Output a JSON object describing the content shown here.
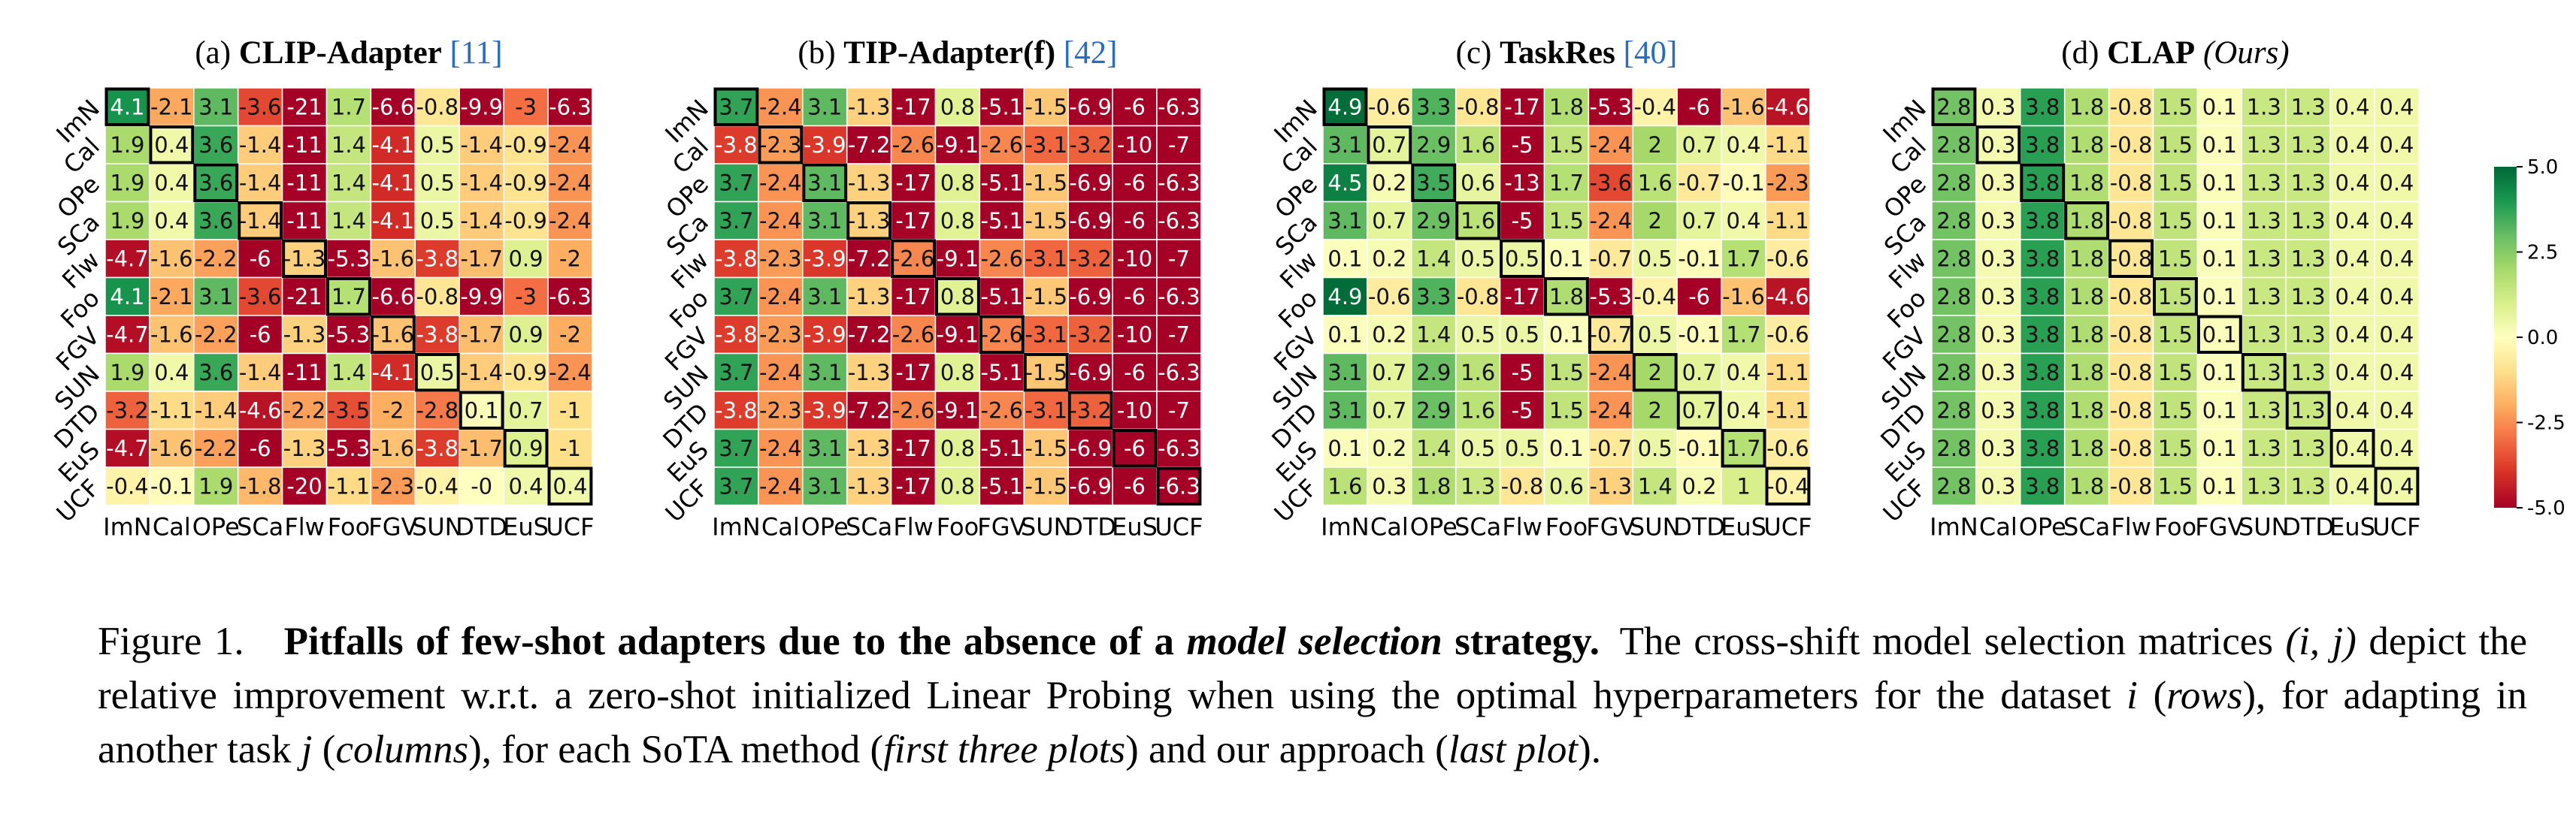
{
  "chart_data": [
    {
      "type": "heatmap",
      "title_label": "(a)",
      "title_method": "CLIP-Adapter",
      "title_ref": "[11]",
      "categories": [
        "ImN",
        "Cal",
        "OPe",
        "SCa",
        "Flw",
        "Foo",
        "FGV",
        "SUN",
        "DTD",
        "EuS",
        "UCF"
      ],
      "values": [
        [
          4.1,
          -2.1,
          3.1,
          -3.6,
          -21,
          1.7,
          -6.6,
          -0.8,
          -9.9,
          -3,
          -6.3
        ],
        [
          1.9,
          0.4,
          3.6,
          -1.4,
          -11,
          1.4,
          -4.1,
          0.5,
          -1.4,
          -0.9,
          -2.4
        ],
        [
          1.9,
          0.4,
          3.6,
          -1.4,
          -11,
          1.4,
          -4.1,
          0.5,
          -1.4,
          -0.9,
          -2.4
        ],
        [
          1.9,
          0.4,
          3.6,
          -1.4,
          -11,
          1.4,
          -4.1,
          0.5,
          -1.4,
          -0.9,
          -2.4
        ],
        [
          -4.7,
          -1.6,
          -2.2,
          -6,
          -1.3,
          -5.3,
          -1.6,
          -3.8,
          -1.7,
          0.9,
          -2
        ],
        [
          4.1,
          -2.1,
          3.1,
          -3.6,
          -21,
          1.7,
          -6.6,
          -0.8,
          -9.9,
          -3,
          -6.3
        ],
        [
          -4.7,
          -1.6,
          -2.2,
          -6,
          -1.3,
          -5.3,
          -1.6,
          -3.8,
          -1.7,
          0.9,
          -2
        ],
        [
          1.9,
          0.4,
          3.6,
          -1.4,
          -11,
          1.4,
          -4.1,
          0.5,
          -1.4,
          -0.9,
          -2.4
        ],
        [
          -3.2,
          -1.1,
          -1.4,
          -4.6,
          -2.2,
          -3.5,
          -2,
          -2.8,
          0.1,
          0.7,
          -1
        ],
        [
          -4.7,
          -1.6,
          -2.2,
          -6,
          -1.3,
          -5.3,
          -1.6,
          -3.8,
          -1.7,
          0.9,
          -1
        ],
        [
          -0.4,
          -0.1,
          1.9,
          -1.8,
          -20,
          -1.1,
          -2.3,
          -0.4,
          0,
          0.4,
          0.4
        ]
      ]
    },
    {
      "type": "heatmap",
      "title_label": "(b)",
      "title_method": "TIP-Adapter(f)",
      "title_ref": "[42]",
      "categories": [
        "ImN",
        "Cal",
        "OPe",
        "SCa",
        "Flw",
        "Foo",
        "FGV",
        "SUN",
        "DTD",
        "EuS",
        "UCF"
      ],
      "values": [
        [
          3.7,
          -2.4,
          3.1,
          -1.3,
          -17,
          0.8,
          -5.1,
          -1.5,
          -6.9,
          -6,
          -6.3
        ],
        [
          -3.8,
          -2.3,
          -3.9,
          -7.2,
          -2.6,
          -9.1,
          -2.6,
          -3.1,
          -3.2,
          -10,
          -7
        ],
        [
          3.7,
          -2.4,
          3.1,
          -1.3,
          -17,
          0.8,
          -5.1,
          -1.5,
          -6.9,
          -6,
          -6.3
        ],
        [
          3.7,
          -2.4,
          3.1,
          -1.3,
          -17,
          0.8,
          -5.1,
          -1.5,
          -6.9,
          -6,
          -6.3
        ],
        [
          -3.8,
          -2.3,
          -3.9,
          -7.2,
          -2.6,
          -9.1,
          -2.6,
          -3.1,
          -3.2,
          -10,
          -7
        ],
        [
          3.7,
          -2.4,
          3.1,
          -1.3,
          -17,
          0.8,
          -5.1,
          -1.5,
          -6.9,
          -6,
          -6.3
        ],
        [
          -3.8,
          -2.3,
          -3.9,
          -7.2,
          -2.6,
          -9.1,
          -2.6,
          -3.1,
          -3.2,
          -10,
          -7
        ],
        [
          3.7,
          -2.4,
          3.1,
          -1.3,
          -17,
          0.8,
          -5.1,
          -1.5,
          -6.9,
          -6,
          -6.3
        ],
        [
          -3.8,
          -2.3,
          -3.9,
          -7.2,
          -2.6,
          -9.1,
          -2.6,
          -3.1,
          -3.2,
          -10,
          -7
        ],
        [
          3.7,
          -2.4,
          3.1,
          -1.3,
          -17,
          0.8,
          -5.1,
          -1.5,
          -6.9,
          -6,
          -6.3
        ],
        [
          3.7,
          -2.4,
          3.1,
          -1.3,
          -17,
          0.8,
          -5.1,
          -1.5,
          -6.9,
          -6,
          -6.3
        ]
      ]
    },
    {
      "type": "heatmap",
      "title_label": "(c)",
      "title_method": "TaskRes",
      "title_ref": "[40]",
      "categories": [
        "ImN",
        "Cal",
        "OPe",
        "SCa",
        "Flw",
        "Foo",
        "FGV",
        "SUN",
        "DTD",
        "EuS",
        "UCF"
      ],
      "values": [
        [
          4.9,
          -0.6,
          3.3,
          -0.8,
          -17,
          1.8,
          -5.3,
          -0.4,
          -6,
          -1.6,
          -4.6
        ],
        [
          3.1,
          0.7,
          2.9,
          1.6,
          -5,
          1.5,
          -2.4,
          2,
          0.7,
          0.4,
          -1.1
        ],
        [
          4.5,
          0.2,
          3.5,
          0.6,
          -13,
          1.7,
          -3.6,
          1.6,
          -0.7,
          -0.1,
          -2.3
        ],
        [
          3.1,
          0.7,
          2.9,
          1.6,
          -5,
          1.5,
          -2.4,
          2,
          0.7,
          0.4,
          -1.1
        ],
        [
          0.1,
          0.2,
          1.4,
          0.5,
          0.5,
          0.1,
          -0.7,
          0.5,
          -0.1,
          1.7,
          -0.6
        ],
        [
          4.9,
          -0.6,
          3.3,
          -0.8,
          -17,
          1.8,
          -5.3,
          -0.4,
          -6,
          -1.6,
          -4.6
        ],
        [
          0.1,
          0.2,
          1.4,
          0.5,
          0.5,
          0.1,
          -0.7,
          0.5,
          -0.1,
          1.7,
          -0.6
        ],
        [
          3.1,
          0.7,
          2.9,
          1.6,
          -5,
          1.5,
          -2.4,
          2,
          0.7,
          0.4,
          -1.1
        ],
        [
          3.1,
          0.7,
          2.9,
          1.6,
          -5,
          1.5,
          -2.4,
          2,
          0.7,
          0.4,
          -1.1
        ],
        [
          0.1,
          0.2,
          1.4,
          0.5,
          0.5,
          0.1,
          -0.7,
          0.5,
          -0.1,
          1.7,
          -0.6
        ],
        [
          1.6,
          0.3,
          1.8,
          1.3,
          -0.8,
          0.6,
          -1.3,
          1.4,
          0.2,
          1,
          -0.4
        ]
      ]
    },
    {
      "type": "heatmap",
      "title_label": "(d)",
      "title_method": "CLAP",
      "title_ref": "(Ours)",
      "categories": [
        "ImN",
        "Cal",
        "OPe",
        "SCa",
        "Flw",
        "Foo",
        "FGV",
        "SUN",
        "DTD",
        "EuS",
        "UCF"
      ],
      "values": [
        [
          2.8,
          0.3,
          3.8,
          1.8,
          -0.8,
          1.5,
          0.1,
          1.3,
          1.3,
          0.4,
          0.4
        ],
        [
          2.8,
          0.3,
          3.8,
          1.8,
          -0.8,
          1.5,
          0.1,
          1.3,
          1.3,
          0.4,
          0.4
        ],
        [
          2.8,
          0.3,
          3.8,
          1.8,
          -0.8,
          1.5,
          0.1,
          1.3,
          1.3,
          0.4,
          0.4
        ],
        [
          2.8,
          0.3,
          3.8,
          1.8,
          -0.8,
          1.5,
          0.1,
          1.3,
          1.3,
          0.4,
          0.4
        ],
        [
          2.8,
          0.3,
          3.8,
          1.8,
          -0.8,
          1.5,
          0.1,
          1.3,
          1.3,
          0.4,
          0.4
        ],
        [
          2.8,
          0.3,
          3.8,
          1.8,
          -0.8,
          1.5,
          0.1,
          1.3,
          1.3,
          0.4,
          0.4
        ],
        [
          2.8,
          0.3,
          3.8,
          1.8,
          -0.8,
          1.5,
          0.1,
          1.3,
          1.3,
          0.4,
          0.4
        ],
        [
          2.8,
          0.3,
          3.8,
          1.8,
          -0.8,
          1.5,
          0.1,
          1.3,
          1.3,
          0.4,
          0.4
        ],
        [
          2.8,
          0.3,
          3.8,
          1.8,
          -0.8,
          1.5,
          0.1,
          1.3,
          1.3,
          0.4,
          0.4
        ],
        [
          2.8,
          0.3,
          3.8,
          1.8,
          -0.8,
          1.5,
          0.1,
          1.3,
          1.3,
          0.4,
          0.4
        ],
        [
          2.8,
          0.3,
          3.8,
          1.8,
          -0.8,
          1.5,
          0.1,
          1.3,
          1.3,
          0.4,
          0.4
        ]
      ]
    }
  ],
  "colorbar": {
    "vmin": -5.0,
    "vmax": 5.0,
    "ticks": [
      5.0,
      2.5,
      0.0,
      -2.5,
      -5.0
    ],
    "tick_labels": [
      "5.0",
      "2.5",
      "0.0",
      "-2.5",
      "-5.0"
    ],
    "colormap": "RdYlGn",
    "colors": [
      "#a50026",
      "#d73027",
      "#f46d43",
      "#fdae61",
      "#fee08b",
      "#ffffbf",
      "#d9ef8b",
      "#a6d96a",
      "#66bd63",
      "#1a9850",
      "#006837"
    ]
  },
  "caption": {
    "figure_label": "Figure 1.",
    "bold_part1": "Pitfalls of few-shot adapters due to the absence of a",
    "bold_italic_part": "model selection",
    "bold_part2": "strategy.",
    "text_part1": "The cross-shift model selection matrices",
    "math_ij": "(i, j)",
    "text_part2": "depict the relative improvement w.r.t. a zero-shot initialized Linear Probing when using the optimal hyperparameters for the dataset",
    "math_i": "i",
    "rows_word": "rows",
    "text_part3": "), for adapting in another task",
    "math_j": "j",
    "columns_word": "columns",
    "text_part4": "), for each SoTA method (",
    "first_three_plots": "first three plots",
    "text_part5": ") and our approach (",
    "last_plot": "last plot",
    "text_part6": ")."
  }
}
